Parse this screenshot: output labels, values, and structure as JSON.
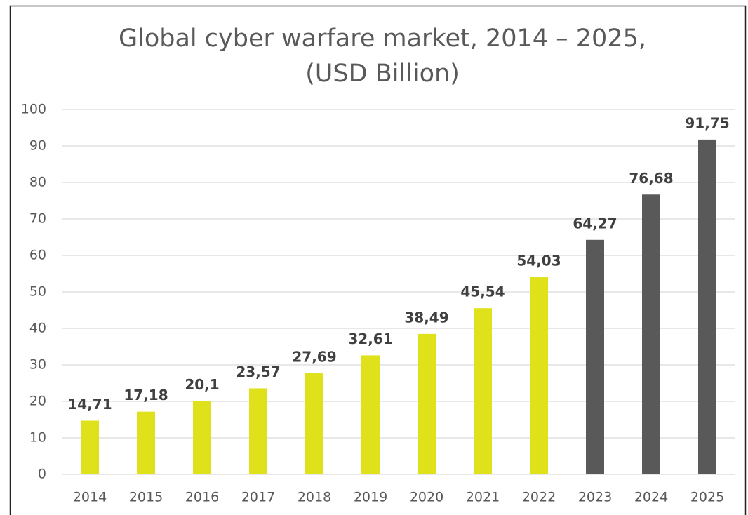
{
  "chart_data": {
    "type": "bar",
    "title": "Global cyber warfare market, 2014 – 2025, (USD Billion)",
    "categories": [
      "2014",
      "2015",
      "2016",
      "2017",
      "2018",
      "2019",
      "2020",
      "2021",
      "2022",
      "2023",
      "2024",
      "2025"
    ],
    "values": [
      14.71,
      17.18,
      20.1,
      23.57,
      27.69,
      32.61,
      38.49,
      45.54,
      54.03,
      64.27,
      76.68,
      91.75
    ],
    "value_labels": [
      "14,71",
      "17,18",
      "20,1",
      "23,57",
      "27,69",
      "32,61",
      "38,49",
      "45,54",
      "54,03",
      "64,27",
      "76,68",
      "91,75"
    ],
    "colors": [
      "#dfe21a",
      "#dfe21a",
      "#dfe21a",
      "#dfe21a",
      "#dfe21a",
      "#dfe21a",
      "#dfe21a",
      "#dfe21a",
      "#dfe21a",
      "#595959",
      "#595959",
      "#595959"
    ],
    "ylim": [
      0,
      100
    ],
    "yticks": [
      0,
      10,
      20,
      30,
      40,
      50,
      60,
      70,
      80,
      90,
      100
    ],
    "grid": true
  }
}
